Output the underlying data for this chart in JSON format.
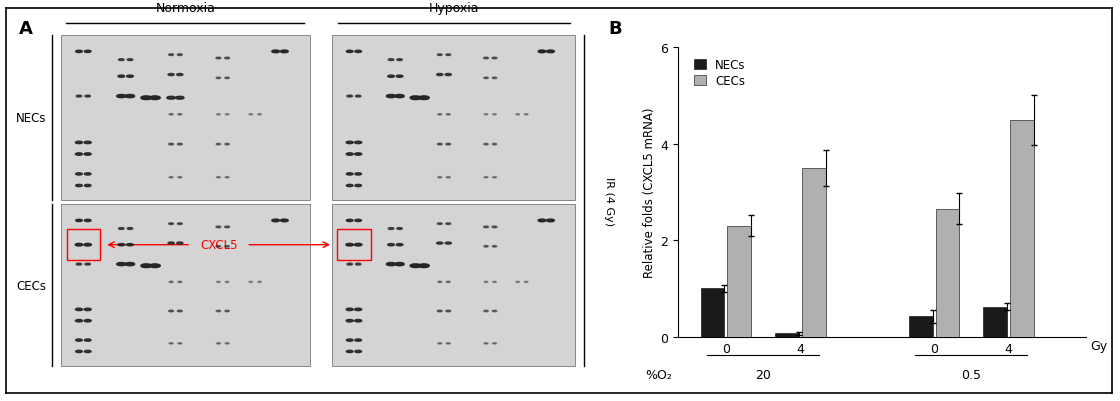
{
  "panel_A_label": "A",
  "panel_B_label": "B",
  "normoxia_label": "Normoxia",
  "hypoxia_label": "Hypoxia",
  "NECs_label": "NECs",
  "CECs_label": "CECs",
  "CXCL5_label": "CXCL5",
  "IR_label": "IR (4 Gy)",
  "ylabel": "Relative folds (CXCL5 mRNA)",
  "gy_label": "Gy",
  "o2_label": "%O₂",
  "legend_NECs": "NECs",
  "legend_CECs": "CECs",
  "x_tick_labels": [
    "0",
    "4",
    "0",
    "4"
  ],
  "NECs_values": [
    1.0,
    0.07,
    0.42,
    0.62
  ],
  "CECs_values": [
    2.3,
    3.5,
    2.65,
    4.5
  ],
  "NECs_errors": [
    0.07,
    0.03,
    0.13,
    0.07
  ],
  "CECs_errors": [
    0.22,
    0.38,
    0.32,
    0.52
  ],
  "NECs_color": "#1a1a1a",
  "CECs_color": "#b0b0b0",
  "ylim": [
    0,
    6
  ],
  "yticks": [
    0,
    2,
    4,
    6
  ],
  "bar_width": 0.32,
  "background_color": "#ffffff",
  "figure_background": "#ffffff",
  "border_color": "#000000",
  "dot_bg_color": "#d4d4d4",
  "dot_color": "#222222",
  "fig_width": 11.2,
  "fig_height": 4.02
}
